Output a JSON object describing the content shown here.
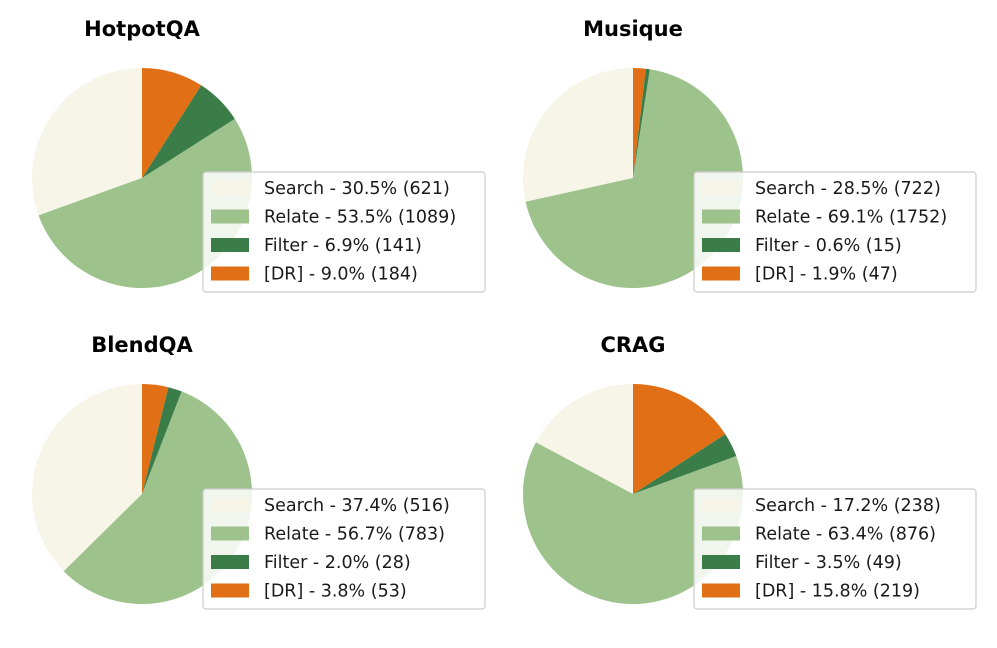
{
  "chart_data": [
    {
      "type": "pie",
      "title": "HotpotQA",
      "categories": [
        "Search",
        "Relate",
        "Filter",
        "[DR]"
      ],
      "values": [
        621,
        1089,
        141,
        184
      ],
      "percentages": [
        30.5,
        53.5,
        6.9,
        9.0
      ],
      "legend_labels": [
        "Search - 30.5% (621)",
        "Relate - 53.5% (1089)",
        "Filter - 6.9% (141)",
        "[DR] - 9.0% (184)"
      ],
      "legend_position": "lower-right"
    },
    {
      "type": "pie",
      "title": "Musique",
      "categories": [
        "Search",
        "Relate",
        "Filter",
        "[DR]"
      ],
      "values": [
        722,
        1752,
        15,
        47
      ],
      "percentages": [
        28.5,
        69.1,
        0.6,
        1.9
      ],
      "legend_labels": [
        "Search - 28.5% (722)",
        "Relate - 69.1% (1752)",
        "Filter - 0.6% (15)",
        "[DR] - 1.9% (47)"
      ],
      "legend_position": "lower-right"
    },
    {
      "type": "pie",
      "title": "BlendQA",
      "categories": [
        "Search",
        "Relate",
        "Filter",
        "[DR]"
      ],
      "values": [
        516,
        783,
        28,
        53
      ],
      "percentages": [
        37.4,
        56.7,
        2.0,
        3.8
      ],
      "legend_labels": [
        "Search - 37.4% (516)",
        "Relate - 56.7% (783)",
        "Filter - 2.0% (28)",
        "[DR] - 3.8% (53)"
      ],
      "legend_position": "lower-right"
    },
    {
      "type": "pie",
      "title": "CRAG",
      "categories": [
        "Search",
        "Relate",
        "Filter",
        "[DR]"
      ],
      "values": [
        238,
        876,
        49,
        219
      ],
      "percentages": [
        17.2,
        63.4,
        3.5,
        15.8
      ],
      "legend_labels": [
        "Search - 17.2% (238)",
        "Relate - 63.4% (876)",
        "Filter - 3.5% (49)",
        "[DR] - 15.8% (219)"
      ],
      "legend_position": "lower-right"
    }
  ],
  "colors": {
    "Search": "#f7f4e8",
    "Relate": "#9dc28b",
    "Filter": "#3b7d48",
    "[DR]": "#e06f16"
  },
  "slice_order_note": "counterclockwise from 12 o'clock: Search, Relate, Filter, [DR]"
}
